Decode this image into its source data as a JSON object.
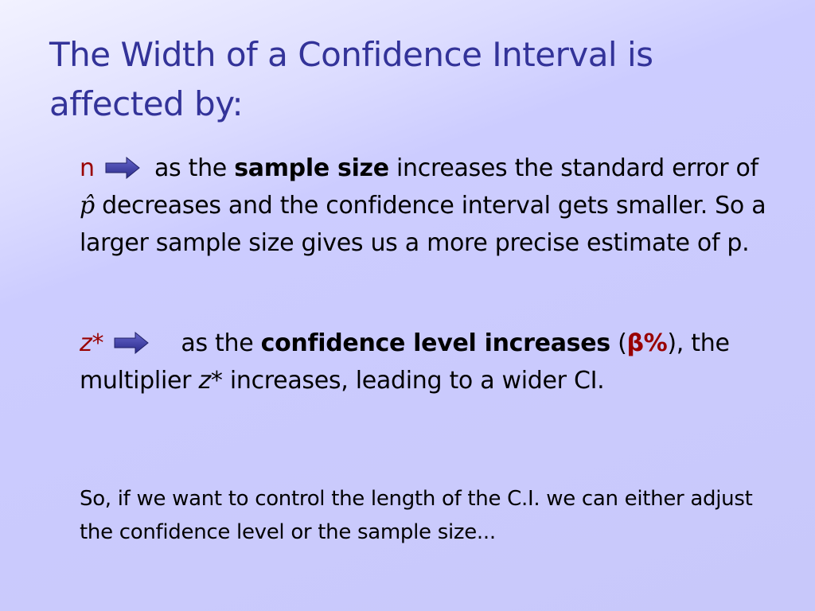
{
  "title": "The Width of a Confidence Interval is affected by:",
  "items": [
    {
      "symbol": "n",
      "parts": [
        "as the",
        "sample size",
        "increases the standard error of",
        "p̂",
        "decreases and the confidence interval gets smaller. So a larger sample size gives us a more precise estimate of p."
      ]
    },
    {
      "symbol": "z*",
      "parts": [
        "as the",
        "confidence level increases",
        "(",
        "β%",
        "), the multiplier",
        "z*",
        "increases, leading to a wider CI."
      ]
    }
  ],
  "conclusion": "So, if we want to control the length of the C.I. we can either adjust the confidence level or the sample size..."
}
